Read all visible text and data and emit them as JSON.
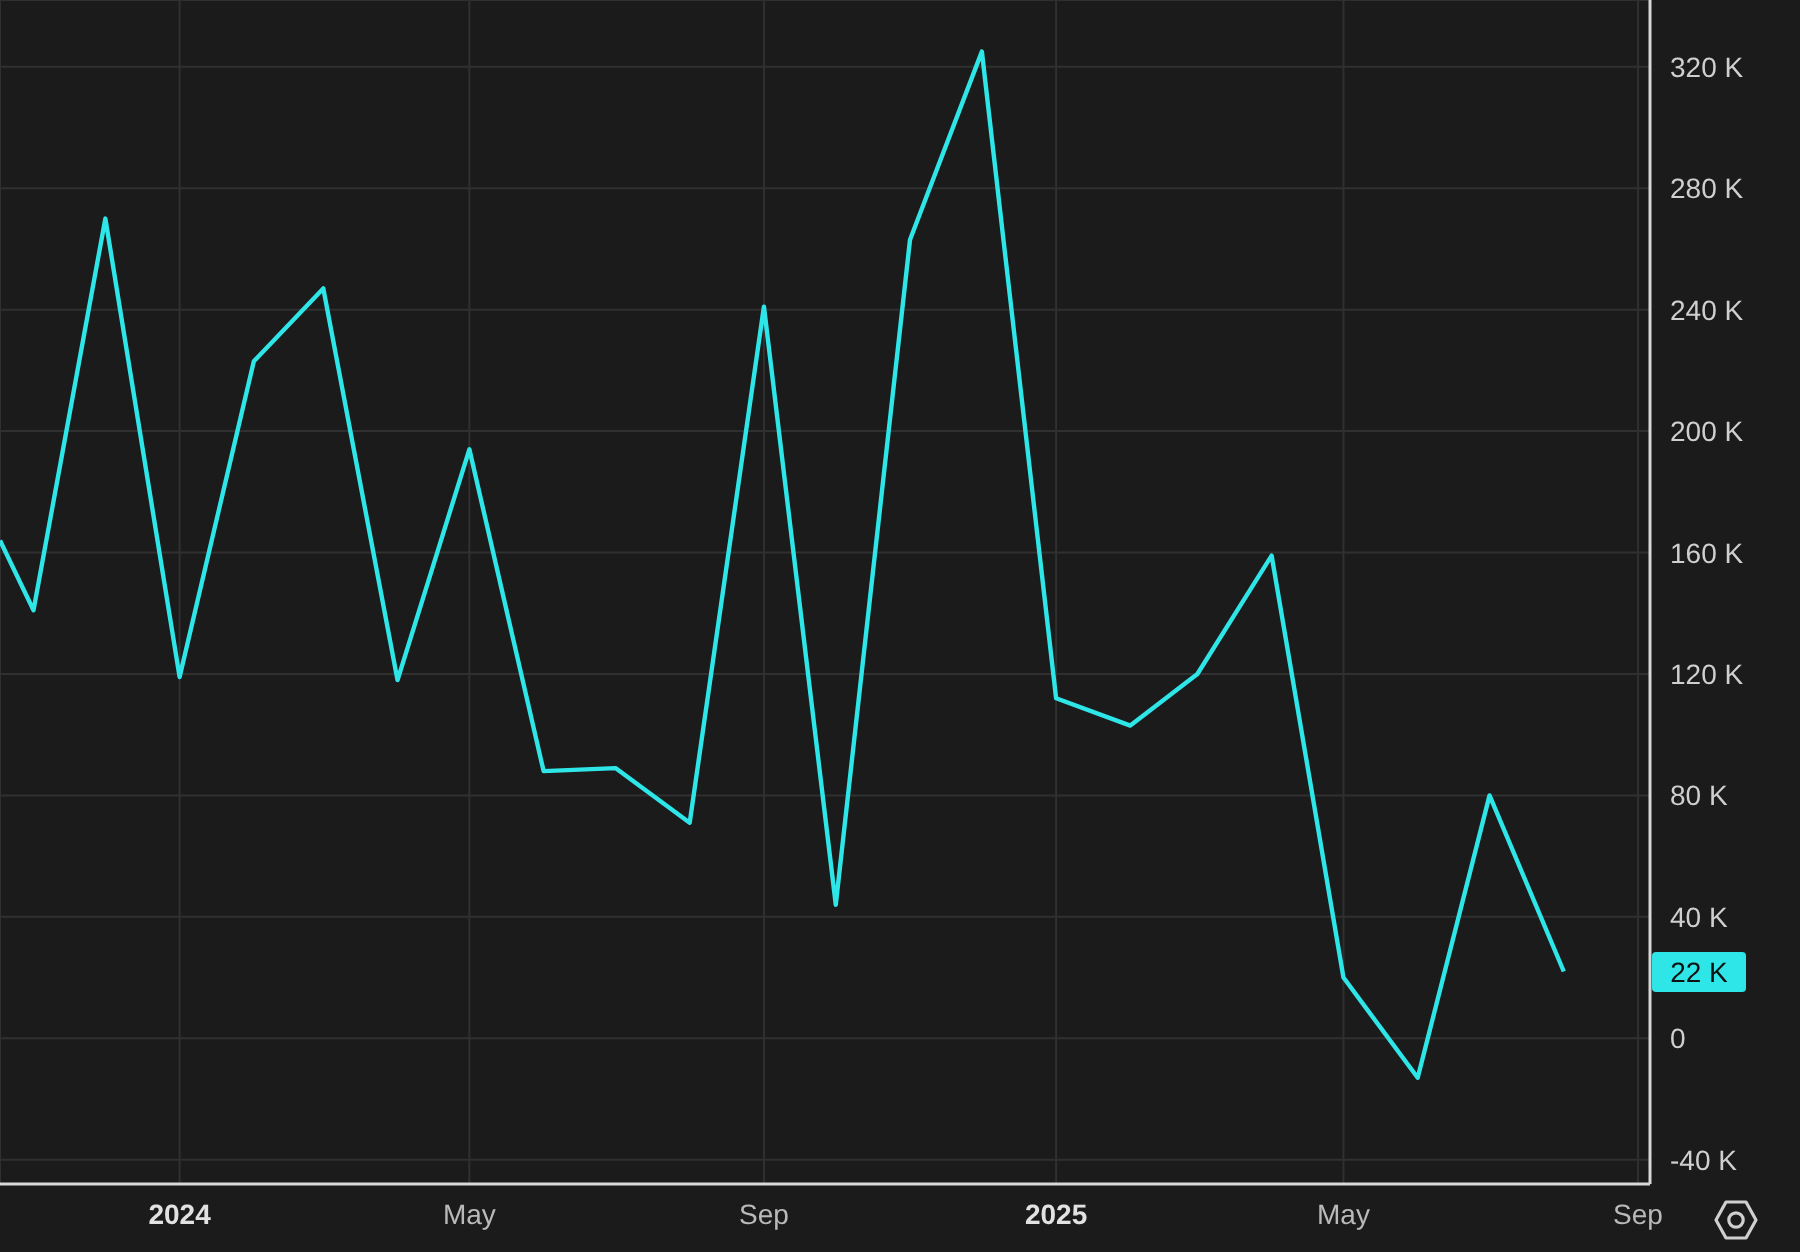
{
  "chart_data": {
    "type": "line",
    "x": [
      "2023-10-18",
      "2023-11-01",
      "2023-12-01",
      "2024-01-01",
      "2024-02-01",
      "2024-03-01",
      "2024-04-01",
      "2024-05-01",
      "2024-06-01",
      "2024-07-01",
      "2024-08-01",
      "2024-09-01",
      "2024-10-01",
      "2024-11-01",
      "2024-12-01",
      "2025-01-01",
      "2025-02-01",
      "2025-03-01",
      "2025-04-01",
      "2025-05-01",
      "2025-06-01",
      "2025-07-01",
      "2025-08-01"
    ],
    "series": [
      {
        "color": "#2ee6e8",
        "values": [
          164,
          141,
          270,
          119,
          223,
          247,
          118,
          194,
          88,
          89,
          71,
          241,
          44,
          263,
          325,
          112,
          103,
          120,
          159,
          20,
          -13,
          80,
          22
        ]
      }
    ],
    "annotations": [
      "22 K"
    ],
    "xlim": [
      "2023-10-18",
      "2025-09-06"
    ],
    "xticks": [
      {
        "value": "2024-01-01",
        "label": "2024"
      },
      {
        "value": "2024-05-01",
        "label": "May"
      },
      {
        "value": "2024-09-01",
        "label": "Sep"
      },
      {
        "value": "2025-01-01",
        "label": "2025"
      },
      {
        "value": "2025-05-01",
        "label": "May"
      },
      {
        "value": "2025-09-01",
        "label": "Sep"
      }
    ],
    "ylim": [
      -48,
      342
    ],
    "yticks": [
      {
        "value": -40,
        "label": "-40 K"
      },
      0,
      {
        "value": 40,
        "label": "40 K"
      },
      {
        "value": 80,
        "label": "80 K"
      },
      {
        "value": 120,
        "label": "120 K"
      },
      {
        "value": 160,
        "label": "160 K"
      },
      {
        "value": 200,
        "label": "200 K"
      },
      {
        "value": 240,
        "label": "240 K"
      },
      {
        "value": 280,
        "label": "280 K"
      },
      {
        "value": 320,
        "label": "320 K"
      }
    ],
    "grid": true,
    "marker": "none",
    "line_style": "solid"
  }
}
